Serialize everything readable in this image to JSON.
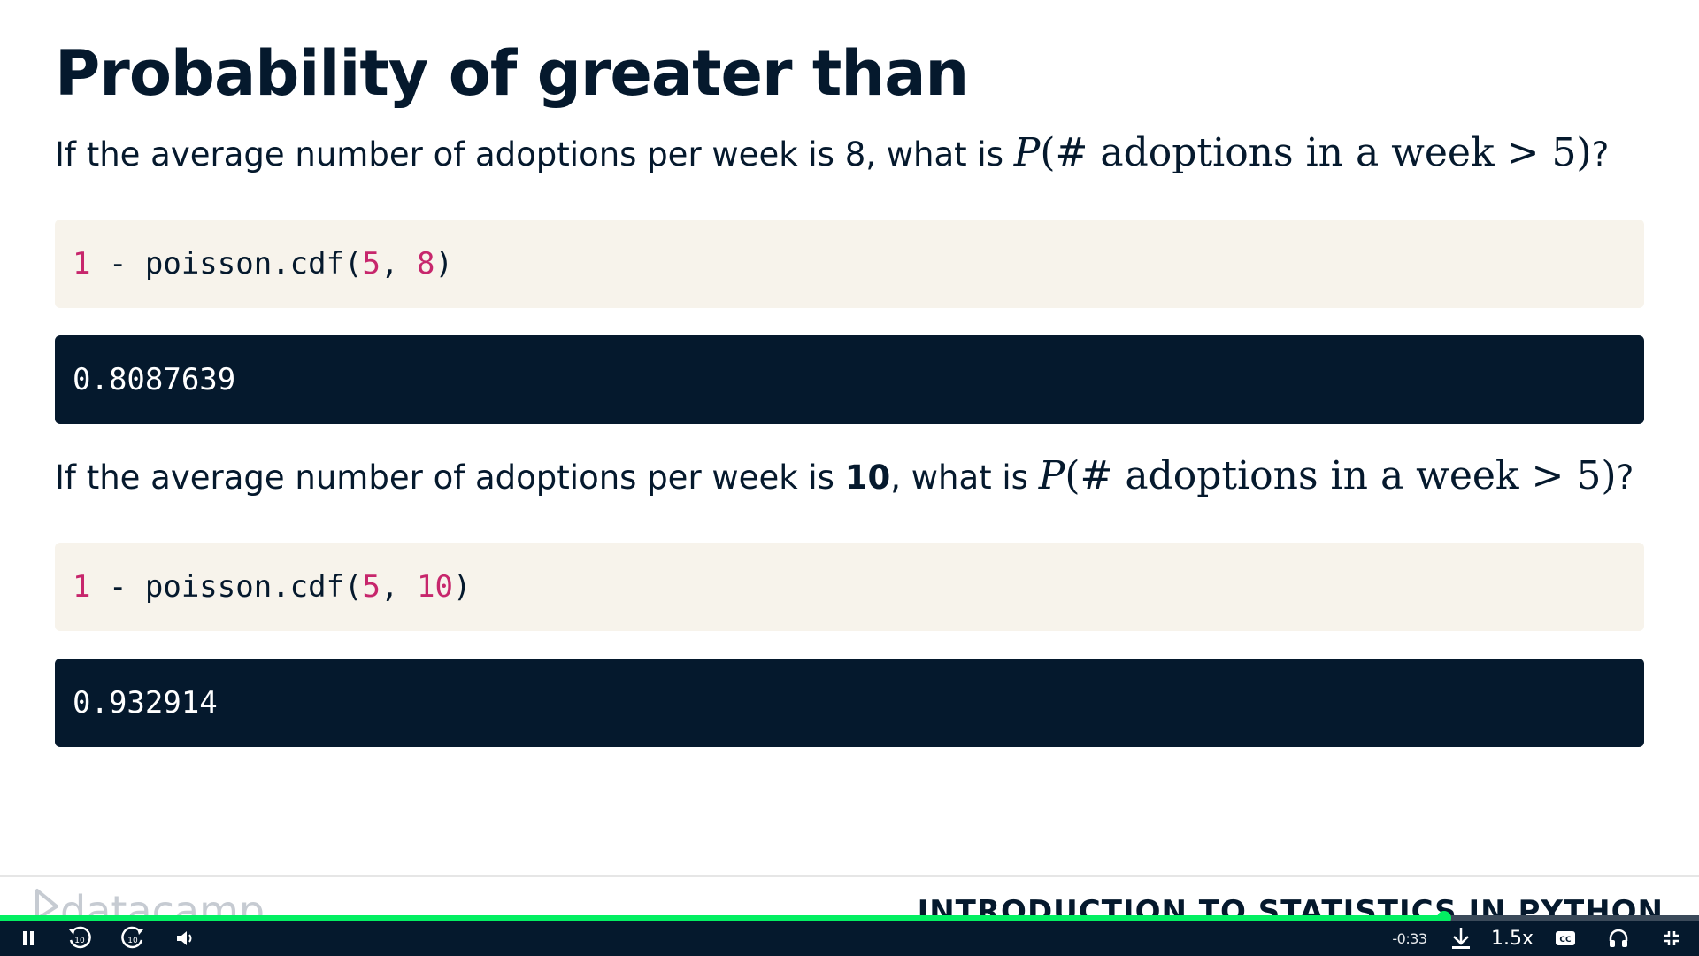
{
  "slide": {
    "title": "Probability of greater than",
    "q1": {
      "prefix": "If the average number of adoptions per week is 8, what is ",
      "math_p": "P",
      "math_body": "(# adoptions in a week > 5)",
      "suffix": "?"
    },
    "code1": {
      "n1": "1",
      "mid": " - poisson.cdf(",
      "a": "5",
      "sep": ", ",
      "b": "8",
      "close": ")"
    },
    "out1": "0.8087639",
    "q2": {
      "prefix": "If the average number of adoptions per week is ",
      "bold_value": "10",
      "middle": ", what is ",
      "math_p": "P",
      "math_body": "(# adoptions in a week > 5)",
      "suffix": "?"
    },
    "code2": {
      "n1": "1",
      "mid": " - poisson.cdf(",
      "a": "5",
      "sep": ", ",
      "b": "10",
      "close": ")"
    },
    "out2": "0.932914"
  },
  "footer": {
    "logo_text": "datacamp",
    "course": "INTRODUCTION TO STATISTICS IN PYTHON"
  },
  "player": {
    "progress_fraction": 0.85,
    "time_remaining": "-0:33",
    "speed": "1.5x",
    "skip_back_seconds": "10",
    "skip_forward_seconds": "10"
  },
  "colors": {
    "navy": "#05192d",
    "code_bg": "#f7f3eb",
    "number_accent": "#c7266c",
    "progress": "#03ef62"
  }
}
